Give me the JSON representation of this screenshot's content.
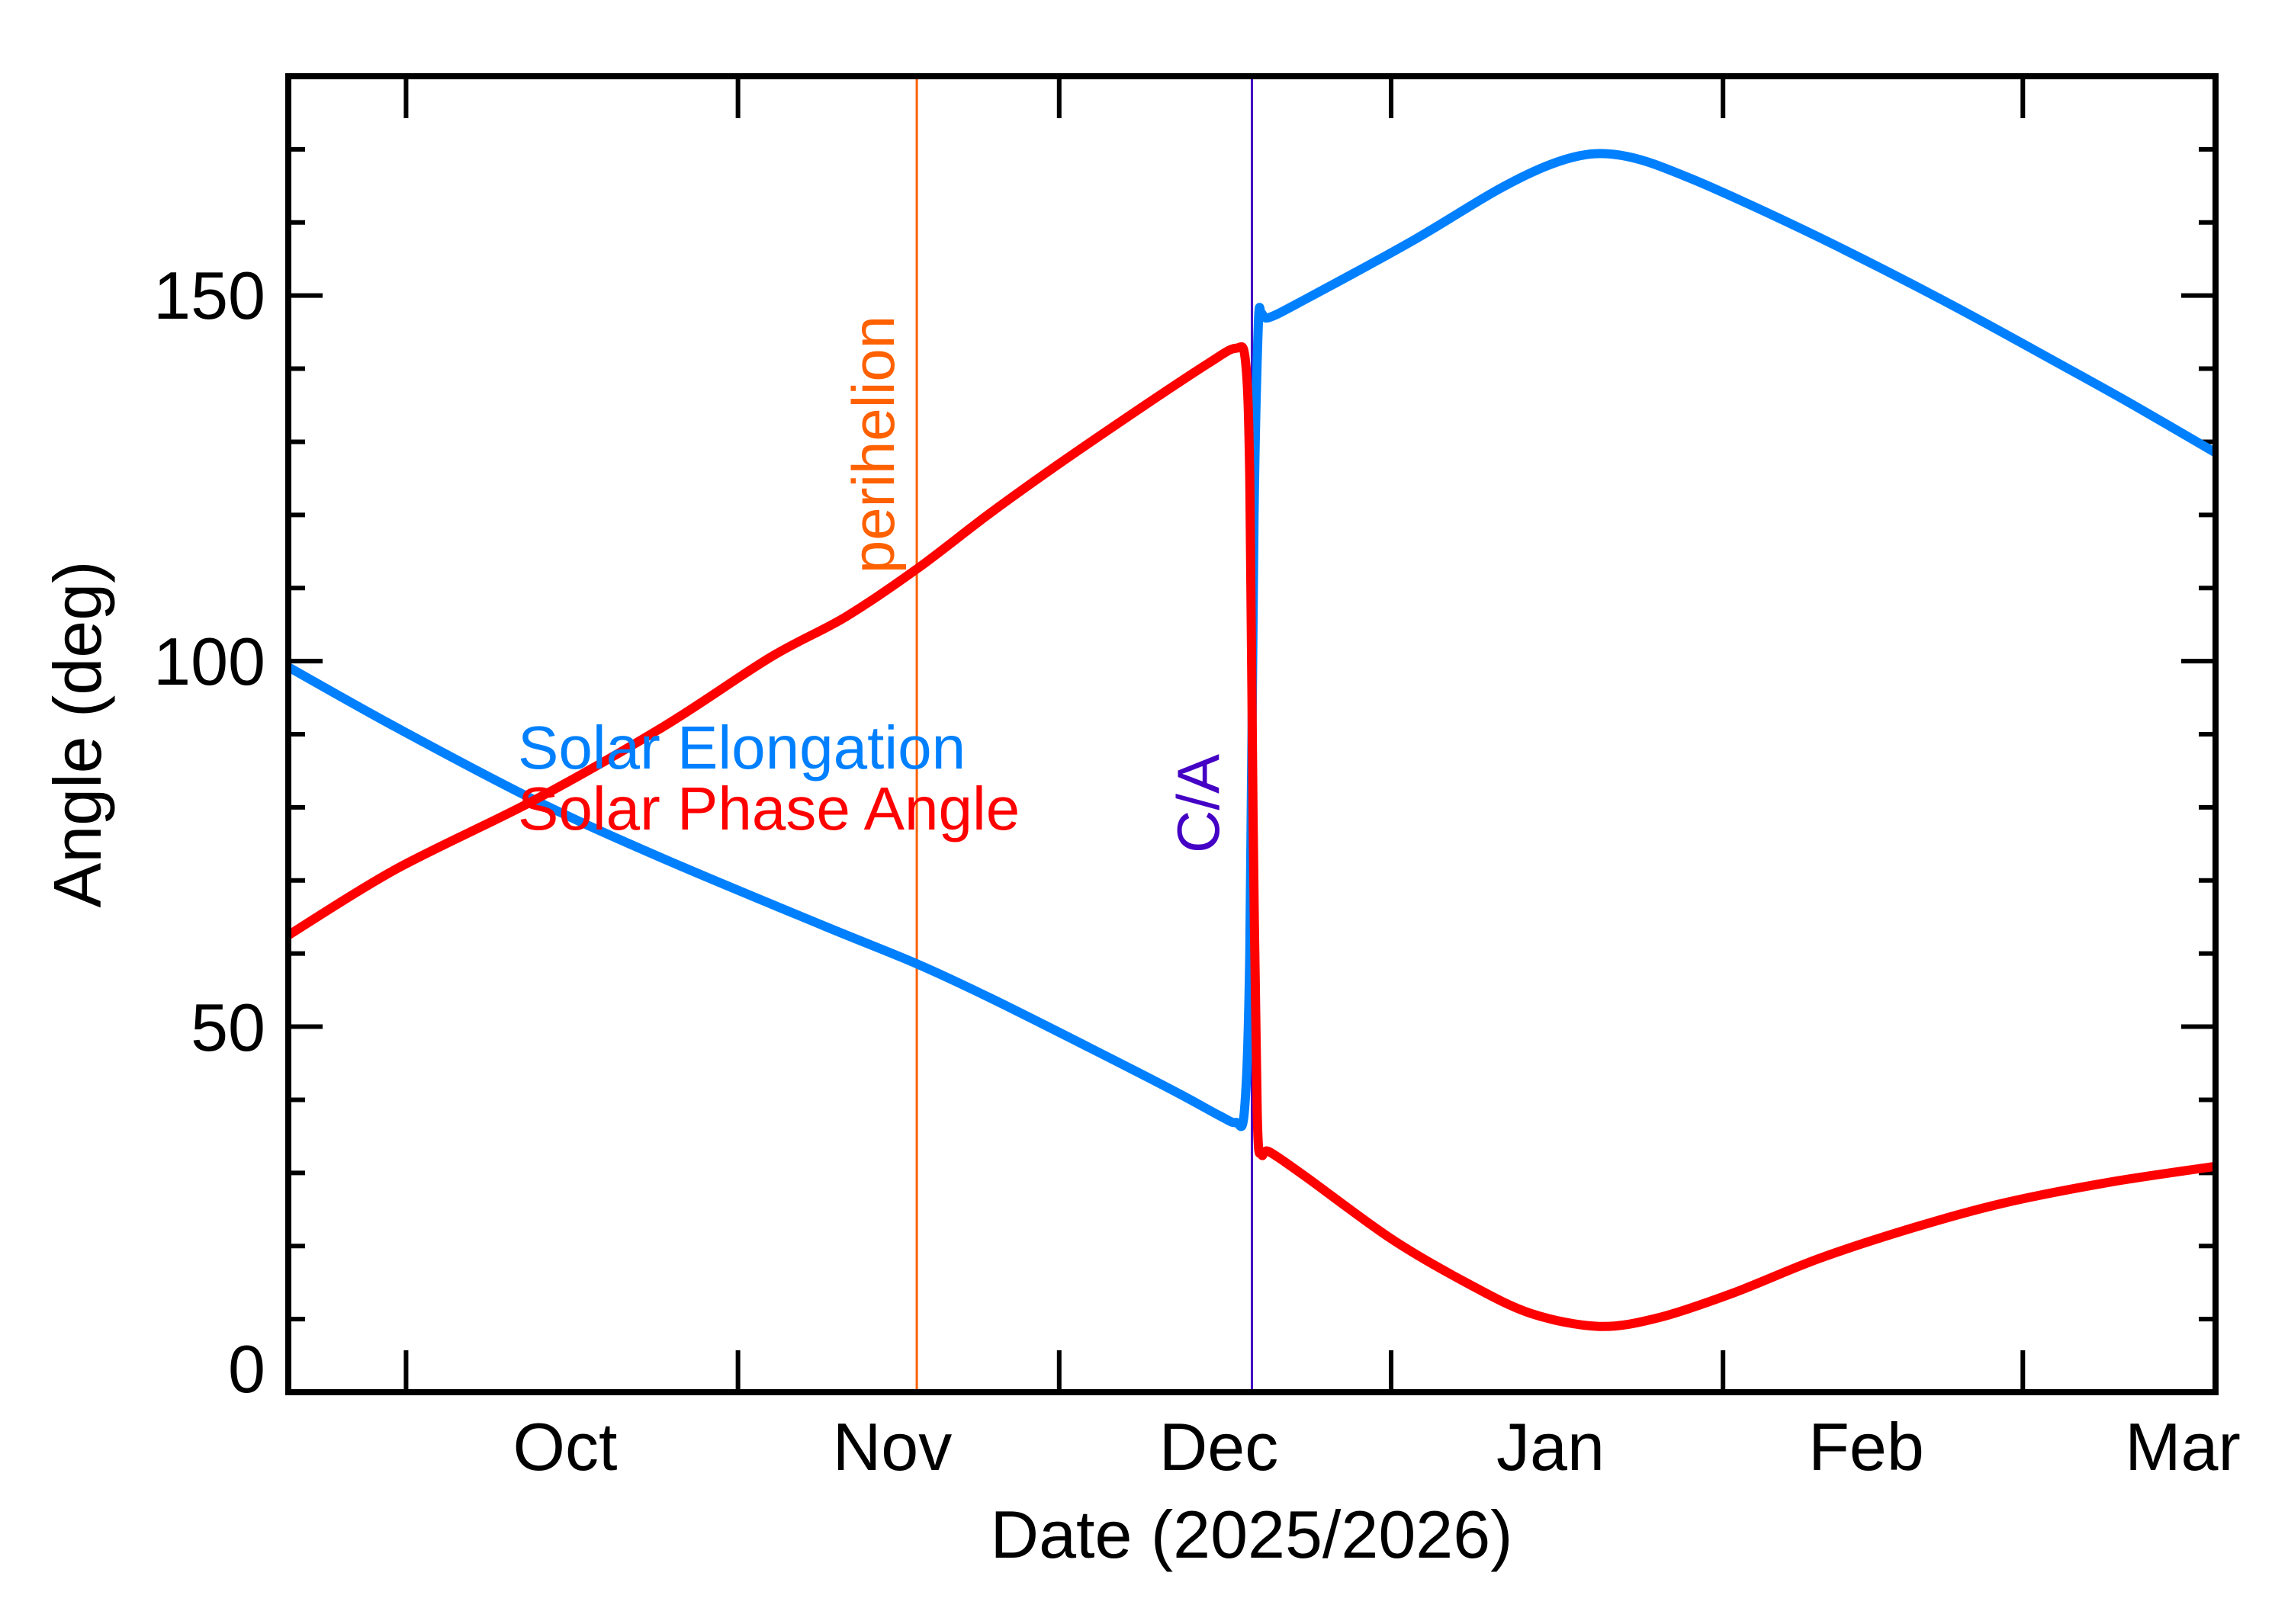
{
  "chart_data": {
    "type": "line",
    "title": "",
    "xlabel": "Date (2025/2026)",
    "ylabel": "Angle (deg)",
    "ylim": [
      0,
      180
    ],
    "xlim_dates": [
      "2025-09-20",
      "2026-03-19"
    ],
    "grid": false,
    "y_major_ticks": [
      0,
      50,
      100,
      150
    ],
    "y_minor_step": 10,
    "x_tick_labels": [
      "Oct",
      "Nov",
      "Dec",
      "Jan",
      "Feb",
      "Mar"
    ],
    "x_month_boundaries_day": [
      11,
      42,
      72,
      103,
      134,
      162
    ],
    "x_label_centers_day": [
      26.5,
      57,
      87.5,
      118.5,
      148,
      172
    ],
    "x_days_total": 180,
    "series": [
      {
        "name": "Solar Elongation",
        "color": "#0080ff",
        "points": [
          [
            0,
            99.2
          ],
          [
            10,
            91.0
          ],
          [
            23,
            81.0
          ],
          [
            35,
            73.0
          ],
          [
            50,
            63.8
          ],
          [
            58.7,
            58.6
          ],
          [
            65.6,
            53.9
          ],
          [
            75,
            47.0
          ],
          [
            83,
            41.0
          ],
          [
            87,
            37.8
          ],
          [
            88.5,
            36.9
          ],
          [
            89.3,
            38.5
          ],
          [
            89.8,
            60.0
          ],
          [
            90.2,
            120.0
          ],
          [
            90.6,
            146.0
          ],
          [
            90.9,
            147.5
          ],
          [
            91.6,
            147.0
          ],
          [
            95,
            149.5
          ],
          [
            105,
            157.5
          ],
          [
            113,
            164.5
          ],
          [
            118,
            168.0
          ],
          [
            122,
            169.4
          ],
          [
            126,
            168.7
          ],
          [
            131,
            166.0
          ],
          [
            137,
            162.1
          ],
          [
            145,
            156.5
          ],
          [
            155,
            149.0
          ],
          [
            165,
            141.0
          ],
          [
            172,
            135.3
          ],
          [
            180,
            128.5
          ]
        ]
      },
      {
        "name": "Solar Phase Angle",
        "color": "#ff0000",
        "points": [
          [
            0,
            62.5
          ],
          [
            10,
            71.5
          ],
          [
            23,
            81.0
          ],
          [
            35,
            91.0
          ],
          [
            45,
            100.5
          ],
          [
            52,
            106.0
          ],
          [
            58.7,
            112.6
          ],
          [
            65.6,
            120.3
          ],
          [
            72,
            127.0
          ],
          [
            80,
            135.0
          ],
          [
            86,
            140.8
          ],
          [
            88.5,
            142.8
          ],
          [
            89.4,
            141.0
          ],
          [
            89.8,
            125.0
          ],
          [
            90.1,
            80.0
          ],
          [
            90.5,
            38.0
          ],
          [
            90.9,
            32.6
          ],
          [
            91.6,
            32.9
          ],
          [
            95,
            29.5
          ],
          [
            103,
            21.0
          ],
          [
            110,
            15.0
          ],
          [
            116,
            10.8
          ],
          [
            122.4,
            9.0
          ],
          [
            128,
            10.2
          ],
          [
            135,
            13.6
          ],
          [
            143,
            18.3
          ],
          [
            152,
            22.6
          ],
          [
            160,
            25.8
          ],
          [
            170,
            28.7
          ],
          [
            180,
            30.9
          ]
        ]
      }
    ],
    "markers": [
      {
        "label": "perihelion",
        "day": 58.7,
        "color": "#ff6000"
      },
      {
        "label": "C/A",
        "day": 90.0,
        "color": "#4400c4"
      }
    ],
    "legend": [
      {
        "label": "Solar Elongation",
        "color": "#0080ff"
      },
      {
        "label": "Solar Phase Angle",
        "color": "#ff0000"
      }
    ],
    "legend_position": "inside, center-left"
  },
  "axes": {
    "x_title": "Date (2025/2026)",
    "y_title": "Angle (deg)",
    "y_tick_labels": [
      "0",
      "50",
      "100",
      "150"
    ],
    "x_tick_labels": [
      "Oct",
      "Nov",
      "Dec",
      "Jan",
      "Feb",
      "Mar"
    ]
  },
  "legend": {
    "elongation_label": "Solar Elongation",
    "phase_label": "Solar Phase Angle"
  },
  "annotations": {
    "perihelion_label": "perihelion",
    "ca_label": "C/A"
  },
  "colors": {
    "elongation": "#0080ff",
    "phase": "#ff0000",
    "perihelion": "#ff6000",
    "ca": "#4400c4",
    "axis": "#000000"
  }
}
